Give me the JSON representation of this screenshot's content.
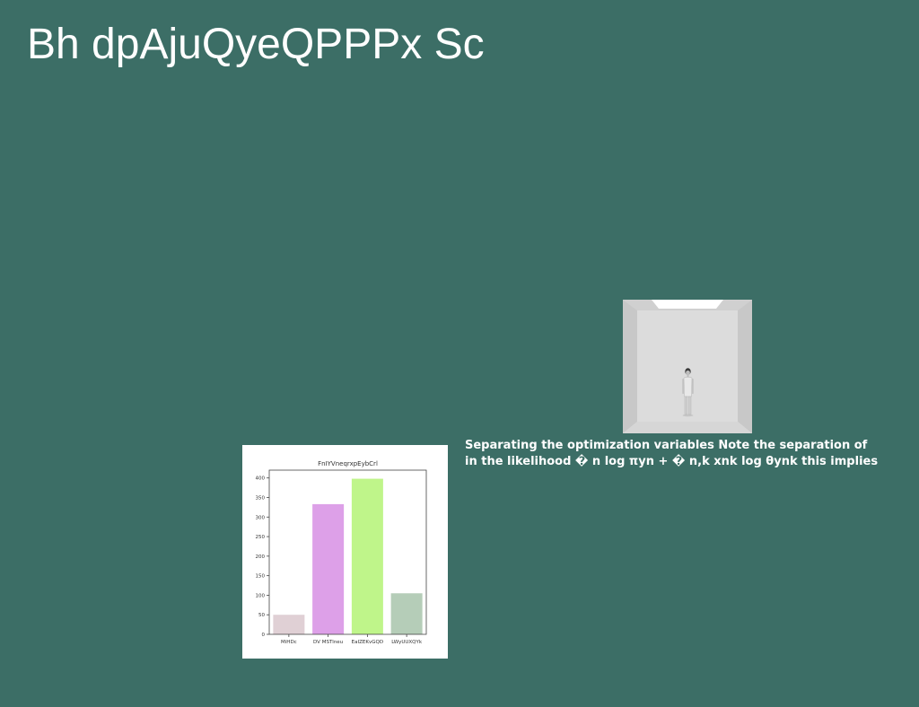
{
  "slide": {
    "title": "Bh dpAjuQyeQPPPx Sc",
    "background_color": "#3c6e66"
  },
  "caption": {
    "line1": "Separating the optimization variables Note the separation of",
    "line2": "in the likelihood � n log πyn + � n,k xnk log θynk this implies"
  },
  "photo": {
    "subject": "person-standing-in-white-room"
  },
  "chart_data": {
    "type": "bar",
    "title": "FnIYVneqrxpEybCrl",
    "categories": [
      "MiHDc",
      "DV MSTlneu",
      "EaIZEKvGQD",
      "LWyUUXQYk"
    ],
    "values": [
      50,
      333,
      398,
      105
    ],
    "colors": [
      "#e0d0d5",
      "#dda0e8",
      "#bff58a",
      "#b5cdb8"
    ],
    "ylim": [
      0,
      420
    ],
    "yticks": [
      0,
      50,
      100,
      150,
      200,
      250,
      300,
      350,
      400
    ],
    "xlabel": "",
    "ylabel": "",
    "grid": false
  }
}
